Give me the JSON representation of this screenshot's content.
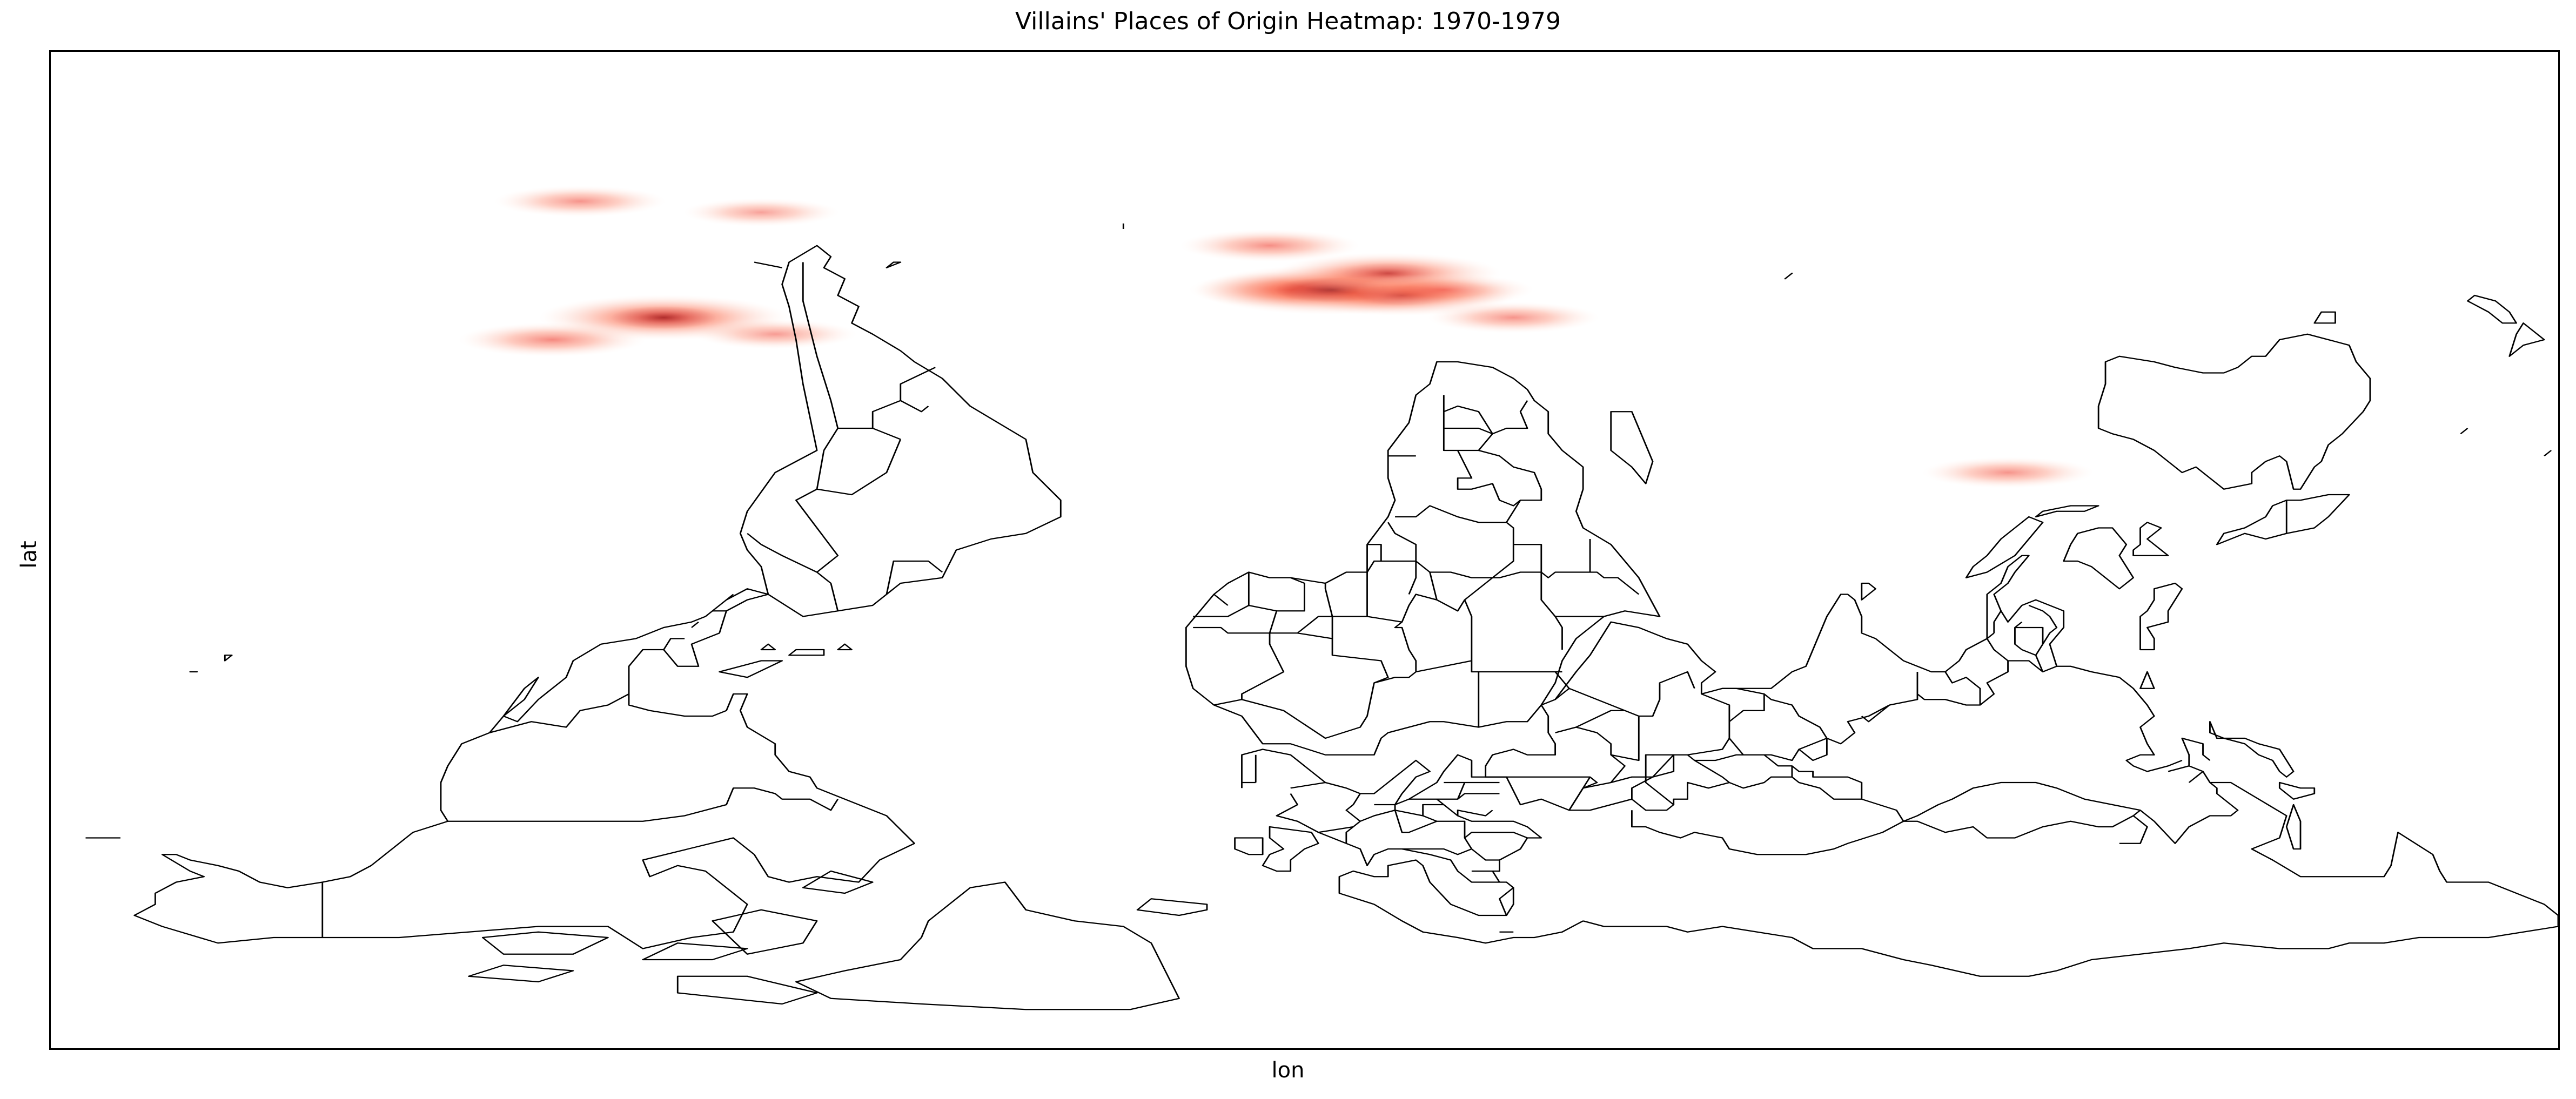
{
  "chart_data": {
    "type": "heatmap",
    "title": "Villains' Places of Origin Heatmap: 1970-1979",
    "xlabel": "lon",
    "ylabel": "lat",
    "xlim": [
      -180,
      180
    ],
    "ylim": [
      -90,
      90
    ],
    "ticks_shown": false,
    "grid": false,
    "basemap": "world country borders, equirectangular projection",
    "colormap": "Reds",
    "colormap_colors": [
      "#fee0d2",
      "#fc9272",
      "#ef3b2c",
      "#a50f15",
      "#67000d"
    ],
    "points": [
      {
        "lon": -104,
        "lat": 63,
        "intensity": 0.35
      },
      {
        "lon": -78,
        "lat": 61,
        "intensity": 0.25
      },
      {
        "lon": -92,
        "lat": 42,
        "intensity": 0.85
      },
      {
        "lon": -108,
        "lat": 38,
        "intensity": 0.45
      },
      {
        "lon": -76,
        "lat": 39,
        "intensity": 0.3
      },
      {
        "lon": -5,
        "lat": 55,
        "intensity": 0.4
      },
      {
        "lon": -2,
        "lat": 47,
        "intensity": 0.55
      },
      {
        "lon": 4,
        "lat": 47,
        "intensity": 1.0
      },
      {
        "lon": 12,
        "lat": 50,
        "intensity": 0.7
      },
      {
        "lon": 14,
        "lat": 46,
        "intensity": 0.7
      },
      {
        "lon": 20,
        "lat": 47,
        "intensity": 0.4
      },
      {
        "lon": 30,
        "lat": 42,
        "intensity": 0.35
      },
      {
        "lon": 101,
        "lat": 14,
        "intensity": 0.35
      }
    ]
  }
}
